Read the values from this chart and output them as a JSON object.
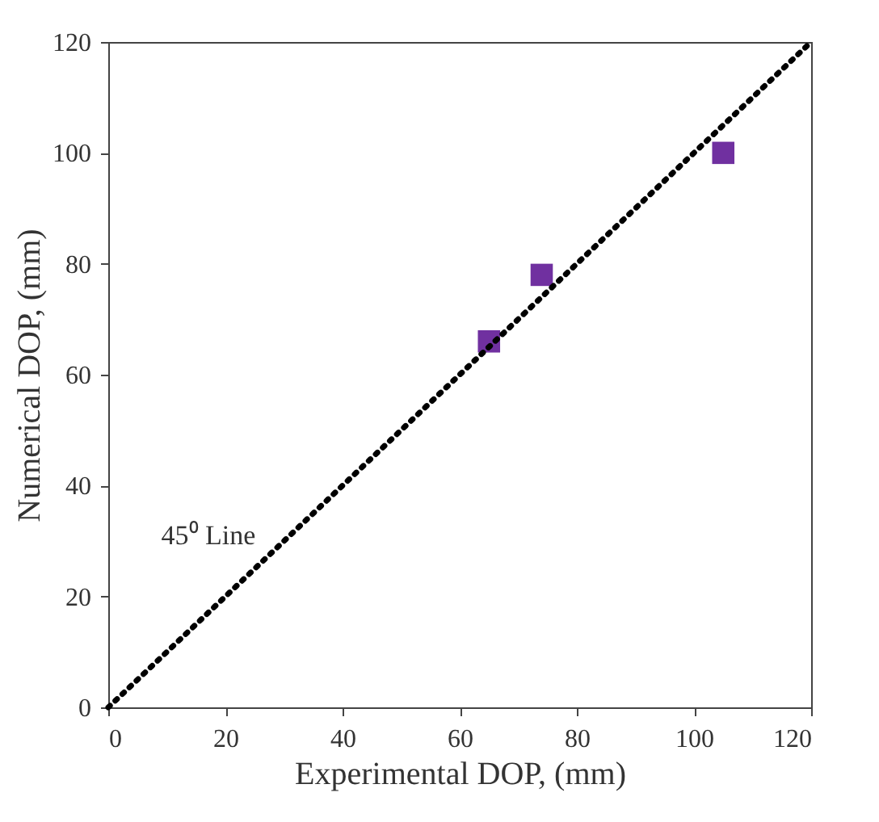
{
  "chart_data": {
    "type": "scatter",
    "xlabel": "Experimental DOP, (mm)",
    "ylabel": "Numerical DOP, (mm)",
    "xlim": [
      0,
      120
    ],
    "ylim": [
      0,
      120
    ],
    "xticks": [
      0,
      20,
      40,
      60,
      80,
      100,
      120
    ],
    "yticks": [
      0,
      20,
      40,
      60,
      80,
      100,
      120
    ],
    "grid": false,
    "series": [
      {
        "color": "#7030a0",
        "marker": "square",
        "x": [
          65,
          74,
          105
        ],
        "values": [
          66,
          78,
          100
        ]
      },
      {
        "type": "line",
        "color": "#000000",
        "line_style": "dotted",
        "marker": "none",
        "x": [
          0,
          120
        ],
        "values": [
          0,
          120
        ]
      }
    ],
    "annotations": [
      "45⁰ Line"
    ]
  }
}
